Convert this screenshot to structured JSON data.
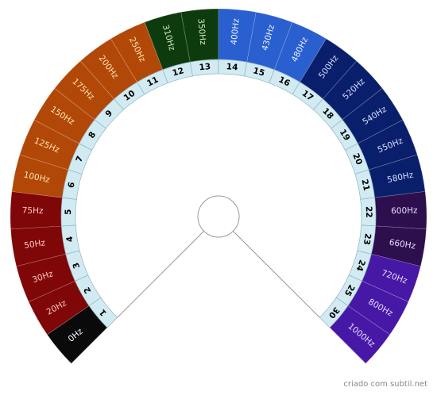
{
  "diagram": {
    "segments": [
      {
        "number": "1",
        "label": "0Hz",
        "color": "#0a0a0a",
        "text_color": "#ffffff"
      },
      {
        "number": "2",
        "label": "20Hz",
        "color": "#7f0707",
        "text_color": "#ffc6c6"
      },
      {
        "number": "3",
        "label": "30Hz",
        "color": "#7f0707",
        "text_color": "#ffc6c6"
      },
      {
        "number": "4",
        "label": "50Hz",
        "color": "#7f0707",
        "text_color": "#ffc6c6"
      },
      {
        "number": "5",
        "label": "75Hz",
        "color": "#7f0707",
        "text_color": "#ffc6c6"
      },
      {
        "number": "6",
        "label": "100Hz",
        "color": "#b24807",
        "text_color": "#ffe6b0"
      },
      {
        "number": "7",
        "label": "125Hz",
        "color": "#b24807",
        "text_color": "#ffe6b0"
      },
      {
        "number": "8",
        "label": "150Hz",
        "color": "#b24807",
        "text_color": "#ffe6b0"
      },
      {
        "number": "9",
        "label": "175Hz",
        "color": "#b24807",
        "text_color": "#ffe6b0"
      },
      {
        "number": "10",
        "label": "200Hz",
        "color": "#b24807",
        "text_color": "#ffe6b0"
      },
      {
        "number": "11",
        "label": "250Hz",
        "color": "#b24807",
        "text_color": "#ffe6b0"
      },
      {
        "number": "12",
        "label": "310Hz",
        "color": "#0e3b0e",
        "text_color": "#cfe8cf"
      },
      {
        "number": "13",
        "label": "350Hz",
        "color": "#0e3b0e",
        "text_color": "#cfe8cf"
      },
      {
        "number": "14",
        "label": "400Hz",
        "color": "#2a5fcf",
        "text_color": "#e6eeff"
      },
      {
        "number": "15",
        "label": "430Hz",
        "color": "#2a5fcf",
        "text_color": "#e6eeff"
      },
      {
        "number": "16",
        "label": "480Hz",
        "color": "#2a5fcf",
        "text_color": "#e6eeff"
      },
      {
        "number": "17",
        "label": "500Hz",
        "color": "#0a1f6b",
        "text_color": "#d6ddff"
      },
      {
        "number": "18",
        "label": "520Hz",
        "color": "#0a1f6b",
        "text_color": "#d6ddff"
      },
      {
        "number": "19",
        "label": "540Hz",
        "color": "#0a1f6b",
        "text_color": "#d6ddff"
      },
      {
        "number": "20",
        "label": "550Hz",
        "color": "#0a1f6b",
        "text_color": "#d6ddff"
      },
      {
        "number": "21",
        "label": "580Hz",
        "color": "#0a1f6b",
        "text_color": "#d6ddff"
      },
      {
        "number": "22",
        "label": "600Hz",
        "color": "#2e0f4e",
        "text_color": "#eadcff"
      },
      {
        "number": "23",
        "label": "660Hz",
        "color": "#2e0f4e",
        "text_color": "#eadcff"
      },
      {
        "number": "24",
        "label": "720Hz",
        "color": "#4717a6",
        "text_color": "#e6dcff"
      },
      {
        "number": "25",
        "label": "800Hz",
        "color": "#4717a6",
        "text_color": "#e6dcff"
      },
      {
        "number": "30",
        "label": "1000Hz",
        "color": "#4717a6",
        "text_color": "#e6dcff"
      }
    ],
    "number_ring_color": "#d2ebf2",
    "line_color": "#999999"
  },
  "footer": {
    "credit": "criado com subtil.net"
  }
}
